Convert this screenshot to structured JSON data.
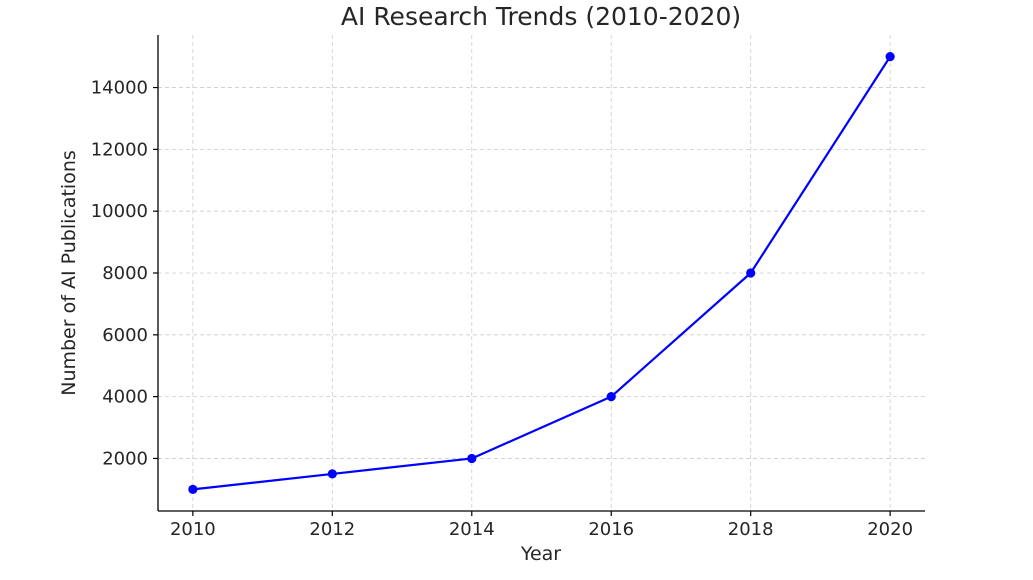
{
  "chart_data": {
    "type": "line",
    "title": "AI Research Trends (2010-2020)",
    "xlabel": "Year",
    "ylabel": "Number of AI Publications",
    "x": [
      2010,
      2012,
      2014,
      2016,
      2018,
      2020
    ],
    "series": [
      {
        "values": [
          1000,
          1500,
          2000,
          4000,
          8000,
          15000
        ],
        "color": "#0000ff",
        "marker": "circle"
      }
    ],
    "x_ticks": [
      "2010",
      "2012",
      "2014",
      "2016",
      "2018",
      "2020"
    ],
    "y_ticks": [
      "2000",
      "4000",
      "6000",
      "8000",
      "10000",
      "12000",
      "14000"
    ],
    "xlim": [
      2009.5,
      2020.5
    ],
    "ylim": [
      300,
      15700
    ],
    "grid": true,
    "grid_style": "dashed",
    "grid_color": "#cccccc",
    "axis_color": "#000000"
  }
}
